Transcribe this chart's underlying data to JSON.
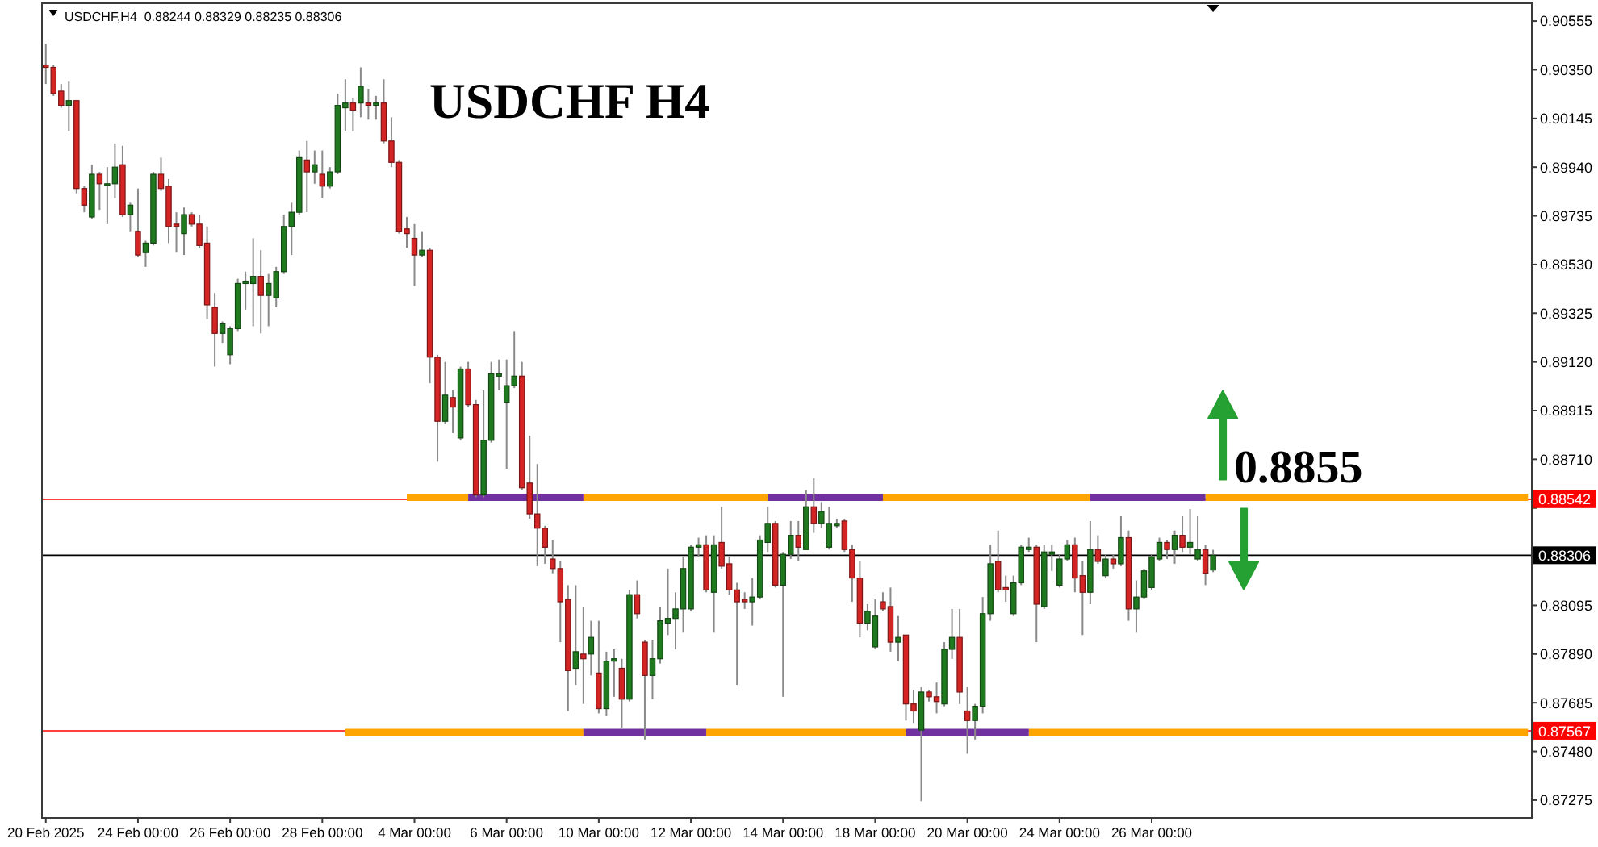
{
  "chart_data": {
    "type": "candlestick",
    "title": "USDCHF H4",
    "subtitle": "USDCHF,H4  0.88244 0.88329 0.88235 0.88306",
    "categories": [
      "20 Feb 2025",
      null,
      null,
      null,
      null,
      null,
      null,
      null,
      null,
      null,
      null,
      null,
      "24 Feb 00:00",
      null,
      null,
      null,
      null,
      null,
      null,
      null,
      null,
      null,
      null,
      null,
      "26 Feb 00:00",
      null,
      null,
      null,
      null,
      null,
      null,
      null,
      null,
      null,
      null,
      null,
      "28 Feb 00:00",
      null,
      null,
      null,
      null,
      null,
      null,
      null,
      null,
      null,
      null,
      null,
      "4 Mar 00:00",
      null,
      null,
      null,
      null,
      null,
      null,
      null,
      null,
      null,
      null,
      null,
      "6 Mar 00:00",
      null,
      null,
      null,
      null,
      null,
      null,
      null,
      null,
      null,
      null,
      null,
      "10 Mar 00:00",
      null,
      null,
      null,
      null,
      null,
      null,
      null,
      null,
      null,
      null,
      null,
      "12 Mar 00:00",
      null,
      null,
      null,
      null,
      null,
      null,
      null,
      null,
      null,
      null,
      null,
      "14 Mar 00:00",
      null,
      null,
      null,
      null,
      null,
      null,
      null,
      null,
      null,
      null,
      null,
      "18 Mar 00:00",
      null,
      null,
      null,
      null,
      null,
      null,
      null,
      null,
      null,
      null,
      null,
      "20 Mar 00:00",
      null,
      null,
      null,
      null,
      null,
      null,
      null,
      null,
      null,
      null,
      null,
      "24 Mar 00:00",
      null,
      null,
      null,
      null,
      null,
      null,
      null,
      null,
      null,
      null,
      null,
      "26 Mar 00:00",
      null,
      null,
      null,
      null,
      null,
      null,
      null,
      null,
      null,
      null,
      null,
      null,
      null,
      null,
      null,
      null,
      null,
      null,
      null,
      null,
      null,
      null,
      null,
      null,
      null,
      null,
      null,
      null,
      null,
      null,
      null,
      null,
      null,
      null,
      null,
      null,
      null,
      null,
      null,
      null,
      null,
      null,
      null,
      null,
      null,
      null,
      null,
      null,
      null
    ],
    "ohlc": [
      [
        0.9037,
        0.9046,
        0.9029,
        0.9036
      ],
      [
        0.9036,
        0.9037,
        0.9024,
        0.9025
      ],
      [
        0.9026,
        0.9029,
        0.9019,
        0.902
      ],
      [
        0.902,
        0.903,
        0.9009,
        0.9022
      ],
      [
        0.9022,
        0.9022,
        0.8983,
        0.8985
      ],
      [
        0.8985,
        0.8986,
        0.8975,
        0.8978
      ],
      [
        0.8973,
        0.8995,
        0.8972,
        0.8991
      ],
      [
        0.8991,
        0.8992,
        0.8976,
        0.8987
      ],
      [
        0.8987,
        0.8994,
        0.897,
        0.8987
      ],
      [
        0.8987,
        0.9004,
        0.8981,
        0.8994
      ],
      [
        0.8995,
        0.9003,
        0.8973,
        0.8974
      ],
      [
        0.8974,
        0.8979,
        0.8967,
        0.8978
      ],
      [
        0.8967,
        0.8985,
        0.8956,
        0.8957
      ],
      [
        0.8958,
        0.8963,
        0.8952,
        0.8962
      ],
      [
        0.8962,
        0.8992,
        0.8961,
        0.8991
      ],
      [
        0.8991,
        0.8998,
        0.8984,
        0.8985
      ],
      [
        0.8986,
        0.8989,
        0.8962,
        0.8969
      ],
      [
        0.897,
        0.8975,
        0.8958,
        0.8969
      ],
      [
        0.8966,
        0.8977,
        0.8957,
        0.8974
      ],
      [
        0.8974,
        0.8975,
        0.8969,
        0.897
      ],
      [
        0.897,
        0.8974,
        0.896,
        0.8961
      ],
      [
        0.8962,
        0.8969,
        0.893,
        0.8936
      ],
      [
        0.8935,
        0.8941,
        0.891,
        0.8924
      ],
      [
        0.8924,
        0.8929,
        0.892,
        0.8928
      ],
      [
        0.8915,
        0.8927,
        0.8911,
        0.8926
      ],
      [
        0.8926,
        0.8947,
        0.8925,
        0.8945
      ],
      [
        0.8945,
        0.895,
        0.8934,
        0.8946
      ],
      [
        0.8945,
        0.8964,
        0.8927,
        0.8948
      ],
      [
        0.8948,
        0.8959,
        0.8924,
        0.894
      ],
      [
        0.894,
        0.8949,
        0.8927,
        0.8945
      ],
      [
        0.8939,
        0.8952,
        0.8935,
        0.895
      ],
      [
        0.895,
        0.8974,
        0.8949,
        0.8969
      ],
      [
        0.8969,
        0.8979,
        0.8957,
        0.8975
      ],
      [
        0.8975,
        0.9001,
        0.8974,
        0.8998
      ],
      [
        0.8997,
        0.9005,
        0.8975,
        0.8992
      ],
      [
        0.8992,
        0.9001,
        0.8987,
        0.8995
      ],
      [
        0.8991,
        0.9001,
        0.8981,
        0.8986
      ],
      [
        0.8986,
        0.8994,
        0.8985,
        0.8992
      ],
      [
        0.8992,
        0.9025,
        0.8991,
        0.902
      ],
      [
        0.9019,
        0.9031,
        0.9009,
        0.9021
      ],
      [
        0.9021,
        0.9023,
        0.9009,
        0.9018
      ],
      [
        0.9021,
        0.9036,
        0.9015,
        0.9028
      ],
      [
        0.9021,
        0.9027,
        0.9014,
        0.902
      ],
      [
        0.902,
        0.9024,
        0.9014,
        0.9021
      ],
      [
        0.9021,
        0.9031,
        0.9004,
        0.9005
      ],
      [
        0.9005,
        0.9015,
        0.8994,
        0.8996
      ],
      [
        0.8996,
        0.8997,
        0.8966,
        0.8967
      ],
      [
        0.8968,
        0.8973,
        0.896,
        0.8966
      ],
      [
        0.8964,
        0.897,
        0.8944,
        0.8957
      ],
      [
        0.8957,
        0.8967,
        0.8956,
        0.8959
      ],
      [
        0.8959,
        0.896,
        0.8903,
        0.8914
      ],
      [
        0.8914,
        0.8915,
        0.887,
        0.8887
      ],
      [
        0.8887,
        0.8912,
        0.8886,
        0.8898
      ],
      [
        0.8897,
        0.89,
        0.8882,
        0.8893
      ],
      [
        0.888,
        0.891,
        0.8879,
        0.8909
      ],
      [
        0.8909,
        0.8912,
        0.8893,
        0.8894
      ],
      [
        0.8894,
        0.8896,
        0.8855,
        0.8856
      ],
      [
        0.8856,
        0.89,
        0.8855,
        0.8879
      ],
      [
        0.8879,
        0.8912,
        0.8878,
        0.8907
      ],
      [
        0.8906,
        0.8913,
        0.89,
        0.8907
      ],
      [
        0.8895,
        0.8913,
        0.8867,
        0.8902
      ],
      [
        0.8902,
        0.8925,
        0.8901,
        0.8906
      ],
      [
        0.8906,
        0.8912,
        0.8858,
        0.8859
      ],
      [
        0.8861,
        0.8881,
        0.8846,
        0.8848
      ],
      [
        0.8848,
        0.8869,
        0.8826,
        0.8842
      ],
      [
        0.8842,
        0.8843,
        0.8827,
        0.8834
      ],
      [
        0.8829,
        0.8837,
        0.8823,
        0.8825
      ],
      [
        0.8825,
        0.8828,
        0.8794,
        0.8811
      ],
      [
        0.8812,
        0.8818,
        0.8765,
        0.8782
      ],
      [
        0.8783,
        0.8818,
        0.8776,
        0.879
      ],
      [
        0.8789,
        0.8809,
        0.8768,
        0.8787
      ],
      [
        0.8789,
        0.8803,
        0.878,
        0.8796
      ],
      [
        0.8781,
        0.8803,
        0.8764,
        0.8766
      ],
      [
        0.8766,
        0.879,
        0.8763,
        0.8786
      ],
      [
        0.8786,
        0.8791,
        0.8771,
        0.8787
      ],
      [
        0.8783,
        0.8787,
        0.8758,
        0.877
      ],
      [
        0.877,
        0.8816,
        0.8769,
        0.8814
      ],
      [
        0.8814,
        0.882,
        0.8804,
        0.8806
      ],
      [
        0.8794,
        0.8795,
        0.8753,
        0.878
      ],
      [
        0.878,
        0.8795,
        0.877,
        0.8787
      ],
      [
        0.8787,
        0.8809,
        0.8785,
        0.8803
      ],
      [
        0.8802,
        0.8825,
        0.8797,
        0.8804
      ],
      [
        0.8804,
        0.8815,
        0.8791,
        0.8808
      ],
      [
        0.8808,
        0.883,
        0.8798,
        0.8825
      ],
      [
        0.8808,
        0.8835,
        0.8807,
        0.8834
      ],
      [
        0.8834,
        0.8838,
        0.883,
        0.8835
      ],
      [
        0.8835,
        0.8839,
        0.8815,
        0.8816
      ],
      [
        0.8815,
        0.8839,
        0.8798,
        0.8835
      ],
      [
        0.8836,
        0.8851,
        0.8825,
        0.8826
      ],
      [
        0.8827,
        0.883,
        0.8814,
        0.8816
      ],
      [
        0.8816,
        0.8819,
        0.8776,
        0.8811
      ],
      [
        0.8812,
        0.8815,
        0.8808,
        0.8811
      ],
      [
        0.8811,
        0.8821,
        0.8801,
        0.8813
      ],
      [
        0.8813,
        0.8839,
        0.8812,
        0.8837
      ],
      [
        0.8836,
        0.8851,
        0.8832,
        0.8844
      ],
      [
        0.8844,
        0.8845,
        0.8817,
        0.8818
      ],
      [
        0.8818,
        0.8832,
        0.8771,
        0.8831
      ],
      [
        0.8831,
        0.8845,
        0.8829,
        0.8839
      ],
      [
        0.8839,
        0.8845,
        0.8828,
        0.8834
      ],
      [
        0.8833,
        0.8858,
        0.8833,
        0.8851
      ],
      [
        0.8851,
        0.8863,
        0.884,
        0.8844
      ],
      [
        0.8844,
        0.8853,
        0.8842,
        0.8849
      ],
      [
        0.8834,
        0.8851,
        0.8833,
        0.8844
      ],
      [
        0.8843,
        0.8846,
        0.8842,
        0.8844
      ],
      [
        0.8845,
        0.8846,
        0.8832,
        0.8833
      ],
      [
        0.8833,
        0.8835,
        0.8811,
        0.8821
      ],
      [
        0.8821,
        0.8828,
        0.8796,
        0.8802
      ],
      [
        0.8802,
        0.881,
        0.8799,
        0.8807
      ],
      [
        0.8792,
        0.8812,
        0.8791,
        0.8805
      ],
      [
        0.8811,
        0.8815,
        0.8807,
        0.8808
      ],
      [
        0.8809,
        0.8817,
        0.879,
        0.8794
      ],
      [
        0.8794,
        0.8805,
        0.8786,
        0.8796
      ],
      [
        0.8797,
        0.8797,
        0.8761,
        0.8768
      ],
      [
        0.8768,
        0.8774,
        0.876,
        0.8765
      ],
      [
        0.8757,
        0.8775,
        0.8727,
        0.8773
      ],
      [
        0.8773,
        0.8774,
        0.8769,
        0.8771
      ],
      [
        0.8771,
        0.8777,
        0.8764,
        0.8769
      ],
      [
        0.8768,
        0.8794,
        0.8767,
        0.8791
      ],
      [
        0.8791,
        0.8808,
        0.8787,
        0.8796
      ],
      [
        0.8796,
        0.8808,
        0.8768,
        0.8773
      ],
      [
        0.8765,
        0.8775,
        0.8747,
        0.8761
      ],
      [
        0.8761,
        0.8768,
        0.8753,
        0.8767
      ],
      [
        0.8767,
        0.8813,
        0.8764,
        0.8806
      ],
      [
        0.8806,
        0.8835,
        0.8803,
        0.8827
      ],
      [
        0.8828,
        0.8841,
        0.8815,
        0.8816
      ],
      [
        0.8817,
        0.8822,
        0.8811,
        0.8816
      ],
      [
        0.8806,
        0.8822,
        0.8805,
        0.8819
      ],
      [
        0.8819,
        0.8835,
        0.8818,
        0.8834
      ],
      [
        0.8833,
        0.8838,
        0.8832,
        0.8834
      ],
      [
        0.8834,
        0.8835,
        0.8794,
        0.881
      ],
      [
        0.8809,
        0.8835,
        0.8808,
        0.8832
      ],
      [
        0.8831,
        0.8835,
        0.8824,
        0.8832
      ],
      [
        0.8818,
        0.8831,
        0.8817,
        0.8829
      ],
      [
        0.8829,
        0.8837,
        0.8828,
        0.8835
      ],
      [
        0.8835,
        0.8838,
        0.8815,
        0.8821
      ],
      [
        0.8822,
        0.8828,
        0.8797,
        0.8815
      ],
      [
        0.8815,
        0.8845,
        0.881,
        0.8833
      ],
      [
        0.8833,
        0.8839,
        0.8827,
        0.8828
      ],
      [
        0.8822,
        0.8831,
        0.8821,
        0.8829
      ],
      [
        0.8829,
        0.8831,
        0.8825,
        0.8827
      ],
      [
        0.8827,
        0.8847,
        0.8826,
        0.8838
      ],
      [
        0.8838,
        0.8841,
        0.8803,
        0.8808
      ],
      [
        0.8808,
        0.882,
        0.8798,
        0.8813
      ],
      [
        0.8813,
        0.8825,
        0.8812,
        0.8824
      ],
      [
        0.8817,
        0.8831,
        0.8816,
        0.883
      ],
      [
        0.8829,
        0.8838,
        0.8828,
        0.8836
      ],
      [
        0.8836,
        0.8837,
        0.8829,
        0.8833
      ],
      [
        0.8833,
        0.8841,
        0.8827,
        0.8839
      ],
      [
        0.8839,
        0.8847,
        0.8832,
        0.8834
      ],
      [
        0.8834,
        0.885,
        0.8831,
        0.8836
      ],
      [
        0.8829,
        0.8847,
        0.8828,
        0.8833
      ],
      [
        0.8833,
        0.8835,
        0.8818,
        0.8823
      ],
      [
        0.88244,
        0.88329,
        0.88235,
        0.88306
      ],
      null,
      null,
      null,
      null,
      null,
      null,
      null,
      null,
      null,
      null,
      null,
      null,
      null,
      null,
      null,
      null,
      null,
      null,
      null,
      null,
      null,
      null,
      null,
      null,
      null,
      null,
      null,
      null,
      null,
      null,
      null,
      null,
      null,
      null,
      null,
      null,
      null,
      null,
      null,
      null,
      null
    ],
    "colors": [
      "#d42424",
      "#d42424",
      "#d42424",
      "#1f7a1f",
      "#d42424",
      "#d42424",
      "#1f7a1f",
      "#d42424",
      "#1f7a1f",
      "#1f7a1f",
      "#d42424",
      "#1f7a1f",
      "#d42424",
      "#1f7a1f",
      "#1f7a1f",
      "#d42424",
      "#d42424",
      "#d42424",
      "#1f7a1f",
      "#d42424",
      "#d42424",
      "#d42424",
      "#d42424",
      "#1f7a1f",
      "#1f7a1f",
      "#1f7a1f",
      "#1f7a1f",
      "#1f7a1f",
      "#d42424",
      "#1f7a1f",
      "#1f7a1f",
      "#1f7a1f",
      "#1f7a1f",
      "#1f7a1f",
      "#d42424",
      "#1f7a1f",
      "#d42424",
      "#1f7a1f",
      "#1f7a1f",
      "#1f7a1f",
      "#d42424",
      "#1f7a1f",
      "#d42424",
      "#1f7a1f",
      "#d42424",
      "#d42424",
      "#d42424",
      "#d42424",
      "#d42424",
      "#1f7a1f",
      "#d42424",
      "#d42424",
      "#1f7a1f",
      "#d42424",
      "#1f7a1f",
      "#d42424",
      "#d42424",
      "#1f7a1f",
      "#1f7a1f",
      "#1f7a1f",
      "#1f7a1f",
      "#1f7a1f",
      "#d42424",
      "#d42424",
      "#d42424",
      "#d42424",
      "#d42424",
      "#d42424",
      "#d42424",
      "#1f7a1f",
      "#d42424",
      "#1f7a1f",
      "#d42424",
      "#1f7a1f",
      "#1f7a1f",
      "#d42424",
      "#1f7a1f",
      "#d42424",
      "#d42424",
      "#1f7a1f",
      "#1f7a1f",
      "#1f7a1f",
      "#1f7a1f",
      "#1f7a1f",
      "#1f7a1f",
      "#1f7a1f",
      "#d42424",
      "#1f7a1f",
      "#d42424",
      "#d42424",
      "#d42424",
      "#d42424",
      "#1f7a1f",
      "#1f7a1f",
      "#1f7a1f",
      "#d42424",
      "#1f7a1f",
      "#1f7a1f",
      "#d42424",
      "#1f7a1f",
      "#d42424",
      "#1f7a1f",
      "#1f7a1f",
      "#1f7a1f",
      "#d42424",
      "#d42424",
      "#d42424",
      "#1f7a1f",
      "#1f7a1f",
      "#d42424",
      "#d42424",
      "#1f7a1f",
      "#d42424",
      "#d42424",
      "#1f7a1f",
      "#d42424",
      "#d42424",
      "#1f7a1f",
      "#1f7a1f",
      "#d42424",
      "#d42424",
      "#1f7a1f",
      "#1f7a1f",
      "#1f7a1f",
      "#d42424",
      "#d42424",
      "#1f7a1f",
      "#1f7a1f",
      "#1f7a1f",
      "#d42424",
      "#1f7a1f",
      "#1f7a1f",
      "#1f7a1f",
      "#1f7a1f",
      "#d42424",
      "#d42424",
      "#1f7a1f",
      "#d42424",
      "#1f7a1f",
      "#d42424",
      "#1f7a1f",
      "#d42424",
      "#1f7a1f",
      "#1f7a1f",
      "#1f7a1f",
      "#1f7a1f",
      "#d42424",
      "#1f7a1f",
      "#d42424",
      "#1f7a1f",
      "#1f7a1f",
      "#d42424",
      "#1f7a1f",
      null,
      null,
      null,
      null,
      null,
      null,
      null,
      null,
      null,
      null,
      null,
      null,
      null,
      null,
      null,
      null,
      null,
      null,
      null,
      null,
      null,
      null,
      null,
      null,
      null,
      null,
      null,
      null,
      null,
      null,
      null,
      null,
      null,
      null,
      null,
      null,
      null,
      null,
      null,
      null,
      null
    ],
    "series": [
      {
        "type": "line",
        "color": "#ffa500",
        "values": [
          null,
          null,
          null,
          null,
          null,
          null,
          null,
          null,
          null,
          null,
          null,
          null,
          null,
          null,
          null,
          null,
          null,
          null,
          null,
          null,
          null,
          null,
          null,
          null,
          null,
          null,
          null,
          null,
          null,
          null,
          null,
          null,
          null,
          null,
          null,
          null,
          null,
          null,
          null,
          null,
          null,
          null,
          null,
          null,
          null,
          null,
          null,
          0.8855,
          0.8855,
          0.8855,
          0.8855,
          0.8855,
          0.8855,
          0.8855,
          0.8855,
          0.8855,
          null,
          null,
          null,
          null,
          null,
          null,
          null,
          null,
          null,
          null,
          null,
          null,
          null,
          null,
          0.8855,
          0.8855,
          0.8855,
          0.8855,
          0.8855,
          0.8855,
          0.8855,
          0.8855,
          0.8855,
          0.8855,
          0.8855,
          0.8855,
          0.8855,
          0.8855,
          0.8855,
          0.8855,
          0.8855,
          0.8855,
          0.8855,
          0.8855,
          0.8855,
          0.8855,
          0.8855,
          0.8855,
          0.8855,
          null,
          null,
          null,
          null,
          null,
          null,
          null,
          null,
          null,
          null,
          null,
          null,
          null,
          null,
          0.8855,
          0.8855,
          0.8855,
          0.8855,
          0.8855,
          0.8855,
          0.8855,
          0.8855,
          0.8855,
          0.8855,
          0.8855,
          0.8855,
          0.8855,
          0.8855,
          0.8855,
          0.8855,
          0.8855,
          0.8855,
          0.8855,
          0.8855,
          0.8855,
          0.8855,
          0.8855,
          0.8855,
          0.8855,
          0.8855,
          0.8855,
          0.8855,
          null,
          null,
          null,
          null,
          null,
          null,
          null,
          null,
          null,
          null,
          null,
          null,
          null,
          null,
          0.8855,
          0.8855,
          0.8855,
          0.8855,
          0.8855,
          0.8855,
          0.8855,
          0.8855,
          0.8855,
          0.8855,
          0.8855,
          0.8855,
          0.8855,
          0.8855,
          0.8855,
          0.8855,
          0.8855,
          0.8855,
          0.8855,
          0.8855,
          0.8855,
          0.8855,
          0.8855,
          0.8855,
          0.8855,
          0.8855,
          0.8855,
          0.8855,
          0.8855,
          0.8855,
          0.8855,
          0.8855,
          0.8855,
          0.8855,
          0.8855,
          0.8855,
          0.8855,
          0.8855,
          0.8855,
          0.8855,
          0.8855,
          0.8855,
          0.8855
        ]
      },
      {
        "type": "line",
        "color": "#ffa500",
        "values": [
          null,
          null,
          null,
          null,
          null,
          null,
          null,
          null,
          null,
          null,
          null,
          null,
          null,
          null,
          null,
          null,
          null,
          null,
          null,
          null,
          null,
          null,
          null,
          null,
          null,
          null,
          null,
          null,
          null,
          null,
          null,
          null,
          null,
          null,
          null,
          null,
          null,
          null,
          null,
          0.8756,
          0.8756,
          0.8756,
          0.8756,
          0.8756,
          0.8756,
          0.8756,
          0.8756,
          0.8756,
          0.8756,
          0.8756,
          0.8756,
          0.8756,
          0.8756,
          0.8756,
          0.8756,
          0.8756,
          0.8756,
          0.8756,
          0.8756,
          0.8756,
          0.8756,
          0.8756,
          0.8756,
          0.8756,
          0.8756,
          0.8756,
          0.8756,
          0.8756,
          0.8756,
          0.8756,
          0.8756,
          null,
          null,
          null,
          null,
          null,
          null,
          null,
          null,
          null,
          null,
          null,
          null,
          null,
          null,
          null,
          0.8756,
          0.8756,
          0.8756,
          0.8756,
          0.8756,
          0.8756,
          0.8756,
          0.8756,
          0.8756,
          0.8756,
          0.8756,
          0.8756,
          0.8756,
          0.8756,
          0.8756,
          0.8756,
          0.8756,
          0.8756,
          0.8756,
          0.8756,
          0.8756,
          0.8756,
          0.8756,
          0.8756,
          0.8756,
          0.8756,
          0.8756,
          null,
          null,
          null,
          null,
          null,
          null,
          null,
          null,
          null,
          null,
          null,
          null,
          null,
          null,
          null,
          0.8756,
          0.8756,
          0.8756,
          0.8756,
          0.8756,
          0.8756,
          0.8756,
          0.8756,
          0.8756,
          0.8756,
          0.8756,
          0.8756,
          0.8756,
          0.8756,
          0.8756,
          0.8756,
          0.8756,
          0.8756,
          0.8756,
          0.8756,
          0.8756,
          0.8756,
          0.8756,
          0.8756,
          0.8756,
          0.8756,
          0.8756,
          0.8756,
          0.8756,
          0.8756,
          0.8756,
          0.8756,
          0.8756,
          0.8756,
          0.8756,
          0.8756,
          0.8756,
          0.8756,
          0.8756,
          0.8756,
          0.8756,
          0.8756,
          0.8756,
          0.8756,
          0.8756,
          0.8756,
          0.8756,
          0.8756,
          0.8756,
          0.8756,
          0.8756,
          0.8756,
          0.8756,
          0.8756,
          0.8756,
          0.8756,
          0.8756,
          0.8756,
          0.8756,
          0.8756,
          0.8756,
          0.8756,
          0.8756,
          0.8756,
          0.8756,
          0.8756
        ]
      },
      {
        "type": "line",
        "color": "#7030a0",
        "values": [
          null,
          null,
          null,
          null,
          null,
          null,
          null,
          null,
          null,
          null,
          null,
          null,
          null,
          null,
          null,
          null,
          null,
          null,
          null,
          null,
          null,
          null,
          null,
          null,
          null,
          null,
          null,
          null,
          null,
          null,
          null,
          null,
          null,
          null,
          null,
          null,
          null,
          null,
          null,
          null,
          null,
          null,
          null,
          null,
          null,
          null,
          null,
          null,
          null,
          null,
          null,
          null,
          null,
          null,
          null,
          0.8855,
          0.8855,
          0.8855,
          0.8855,
          0.8855,
          0.8855,
          0.8855,
          0.8855,
          0.8855,
          0.8855,
          0.8855,
          0.8855,
          0.8855,
          0.8855,
          0.8855,
          0.8855,
          null,
          null,
          null,
          null,
          null,
          null,
          null,
          null,
          null,
          null,
          null,
          null,
          null,
          null,
          null,
          null,
          null,
          null,
          null,
          null,
          null,
          null,
          null,
          0.8855,
          0.8855,
          0.8855,
          0.8855,
          0.8855,
          0.8855,
          0.8855,
          0.8855,
          0.8855,
          0.8855,
          0.8855,
          0.8855,
          0.8855,
          0.8855,
          0.8855,
          0.8855,
          null,
          null,
          null,
          null,
          null,
          null,
          null,
          null,
          null,
          null,
          null,
          null,
          null,
          null,
          null,
          null,
          null,
          null,
          null,
          null,
          null,
          null,
          null,
          null,
          null,
          null,
          0.8855,
          0.8855,
          0.8855,
          0.8855,
          0.8855,
          0.8855,
          0.8855,
          0.8855,
          0.8855,
          0.8855,
          0.8855,
          0.8855,
          0.8855,
          0.8855,
          0.8855,
          0.8855,
          null,
          null,
          null,
          null,
          null,
          null,
          null,
          null,
          null,
          null,
          null,
          null,
          null,
          null,
          null,
          null,
          null,
          null,
          null,
          null,
          null,
          null,
          null,
          null,
          null,
          null,
          null,
          null,
          null,
          null,
          null,
          null,
          null,
          null,
          null,
          null,
          null,
          null,
          null,
          null,
          null,
          null
        ]
      },
      {
        "type": "line",
        "color": "#7030a0",
        "values": [
          null,
          null,
          null,
          null,
          null,
          null,
          null,
          null,
          null,
          null,
          null,
          null,
          null,
          null,
          null,
          null,
          null,
          null,
          null,
          null,
          null,
          null,
          null,
          null,
          null,
          null,
          null,
          null,
          null,
          null,
          null,
          null,
          null,
          null,
          null,
          null,
          null,
          null,
          null,
          null,
          null,
          null,
          null,
          null,
          null,
          null,
          null,
          null,
          null,
          null,
          null,
          null,
          null,
          null,
          null,
          null,
          null,
          null,
          null,
          null,
          null,
          null,
          null,
          null,
          null,
          null,
          null,
          null,
          null,
          null,
          0.8756,
          0.8756,
          0.8756,
          0.8756,
          0.8756,
          0.8756,
          0.8756,
          0.8756,
          0.8756,
          0.8756,
          0.8756,
          0.8756,
          0.8756,
          0.8756,
          0.8756,
          0.8756,
          0.8756,
          null,
          null,
          null,
          null,
          null,
          null,
          null,
          null,
          null,
          null,
          null,
          null,
          null,
          null,
          null,
          null,
          null,
          null,
          null,
          null,
          null,
          null,
          null,
          null,
          null,
          0.8756,
          0.8756,
          0.8756,
          0.8756,
          0.8756,
          0.8756,
          0.8756,
          0.8756,
          0.8756,
          0.8756,
          0.8756,
          0.8756,
          0.8756,
          0.8756,
          0.8756,
          0.8756,
          0.8756,
          null,
          null,
          null,
          null,
          null,
          null,
          null,
          null,
          null,
          null,
          null,
          null,
          null,
          null,
          null,
          null,
          null,
          null,
          null,
          null,
          null,
          null,
          null,
          null,
          null,
          null,
          null,
          null,
          null,
          null,
          null,
          null,
          null,
          null,
          null,
          null,
          null,
          null,
          null,
          null,
          null,
          null,
          null,
          null,
          null,
          null,
          null,
          null,
          null,
          null,
          null,
          null,
          null,
          null,
          null,
          null,
          null,
          null,
          null,
          null,
          null,
          null,
          null,
          null,
          null
        ]
      }
    ],
    "ylim": [
      0.872,
      0.9063
    ],
    "yticks": [
      0.90555,
      {
        "value": 0.9035,
        "label": "0.90350"
      },
      0.90145,
      {
        "value": 0.8994,
        "label": "0.89940"
      },
      0.89735,
      {
        "value": 0.8953,
        "label": "0.89530"
      },
      0.89325,
      {
        "value": 0.8912,
        "label": "0.89120"
      },
      0.88915,
      {
        "value": 0.8871,
        "label": "0.88710"
      },
      {
        "value": 0.88505,
        "label": null
      },
      0.88095,
      {
        "value": 0.8789,
        "label": "0.87890"
      },
      0.87685,
      {
        "value": 0.8748,
        "label": "0.87480"
      },
      0.87275
    ],
    "ref_lines": [
      {
        "axis": "y",
        "value": 0.88542,
        "label": "0.88542",
        "color": "#ff0000"
      },
      {
        "axis": "y",
        "value": 0.88306,
        "label": "0.88306",
        "color": "#000000"
      },
      {
        "axis": "y",
        "value": 0.87567,
        "label": "0.87567",
        "color": "#ff0000"
      }
    ],
    "annotations": [
      {
        "text": "0.8855",
        "y": 0.8855
      }
    ]
  }
}
